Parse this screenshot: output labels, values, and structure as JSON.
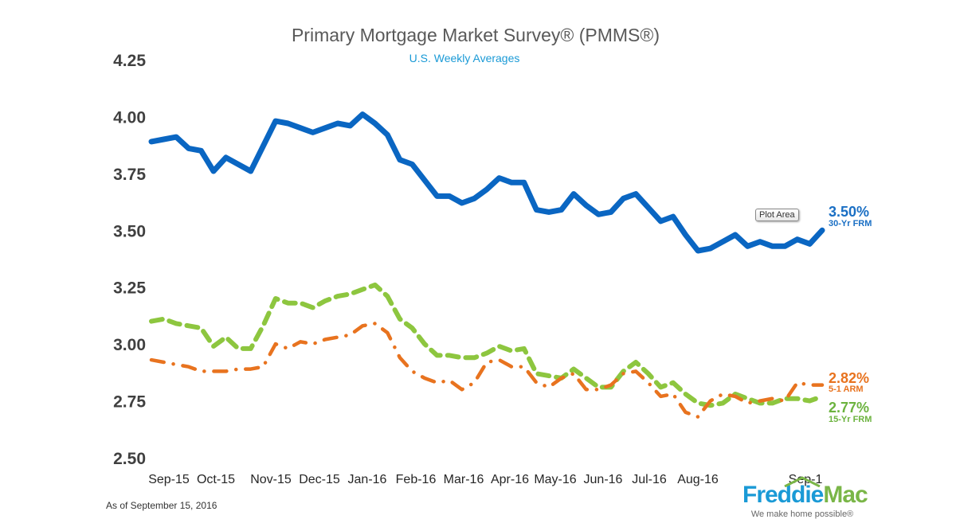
{
  "chart_data": {
    "type": "line",
    "title": "Primary Mortgage Market Survey® (PMMS®)",
    "subtitle": "U.S. Weekly Averages",
    "ylim": [
      2.5,
      4.25
    ],
    "yticks": [
      "4.25",
      "4.00",
      "3.75",
      "3.50",
      "3.25",
      "3.00",
      "2.75",
      "2.50"
    ],
    "ytick_values": [
      4.25,
      4.0,
      3.75,
      3.5,
      3.25,
      3.0,
      2.75,
      2.5
    ],
    "xticks": [
      "Sep-15",
      "Oct-15",
      "Nov-15",
      "Dec-15",
      "Jan-16",
      "Feb-16",
      "Mar-16",
      "Apr-16",
      "May-16",
      "Jun-16",
      "Jul-16",
      "Aug-16",
      "Sep-1"
    ],
    "x_description_weeks": 55,
    "series": [
      {
        "name": "30-Yr FRM",
        "color": "#0a66c2",
        "style": "solid",
        "end_label": "3.50%",
        "values": [
          3.89,
          3.9,
          3.91,
          3.86,
          3.85,
          3.76,
          3.82,
          3.79,
          3.76,
          3.87,
          3.98,
          3.97,
          3.95,
          3.93,
          3.95,
          3.97,
          3.96,
          4.01,
          3.97,
          3.92,
          3.81,
          3.79,
          3.72,
          3.65,
          3.65,
          3.62,
          3.64,
          3.68,
          3.73,
          3.71,
          3.71,
          3.59,
          3.58,
          3.59,
          3.66,
          3.61,
          3.57,
          3.58,
          3.64,
          3.66,
          3.6,
          3.54,
          3.56,
          3.48,
          3.41,
          3.42,
          3.45,
          3.48,
          3.43,
          3.45,
          3.43,
          3.43,
          3.46,
          3.44,
          3.5
        ]
      },
      {
        "name": "5-1 ARM",
        "color": "#e8731f",
        "style": "dash-dot",
        "end_label": "2.82%",
        "values": [
          2.93,
          2.92,
          2.91,
          2.9,
          2.88,
          2.88,
          2.88,
          2.89,
          2.89,
          2.9,
          3.0,
          2.98,
          3.01,
          3.0,
          3.02,
          3.03,
          3.04,
          3.08,
          3.09,
          3.05,
          2.94,
          2.88,
          2.85,
          2.83,
          2.84,
          2.8,
          2.83,
          2.92,
          2.93,
          2.9,
          2.9,
          2.83,
          2.81,
          2.85,
          2.87,
          2.8,
          2.8,
          2.82,
          2.87,
          2.88,
          2.83,
          2.77,
          2.78,
          2.7,
          2.68,
          2.75,
          2.78,
          2.77,
          2.74,
          2.75,
          2.76,
          2.75,
          2.83,
          2.82,
          2.82
        ]
      },
      {
        "name": "15-Yr FRM",
        "color": "#8dc63f",
        "style": "dashed",
        "end_label": "2.77%",
        "values": [
          3.1,
          3.11,
          3.09,
          3.08,
          3.07,
          2.99,
          3.03,
          2.98,
          2.98,
          3.08,
          3.2,
          3.18,
          3.18,
          3.16,
          3.19,
          3.21,
          3.22,
          3.24,
          3.26,
          3.21,
          3.11,
          3.07,
          3.0,
          2.95,
          2.95,
          2.94,
          2.94,
          2.96,
          2.99,
          2.97,
          2.98,
          2.87,
          2.86,
          2.85,
          2.89,
          2.85,
          2.81,
          2.81,
          2.88,
          2.92,
          2.87,
          2.81,
          2.83,
          2.78,
          2.74,
          2.73,
          2.74,
          2.78,
          2.76,
          2.74,
          2.74,
          2.76,
          2.76,
          2.75,
          2.77
        ]
      }
    ],
    "grid": false,
    "legend": "end-of-line labels"
  },
  "footer": {
    "as_of": "As of September 15, 2016"
  },
  "logo": {
    "name_part1": "Freddie",
    "name_part2": "Mac",
    "tagline": "We make home possible®"
  },
  "tooltip": {
    "text": "Plot Area"
  }
}
